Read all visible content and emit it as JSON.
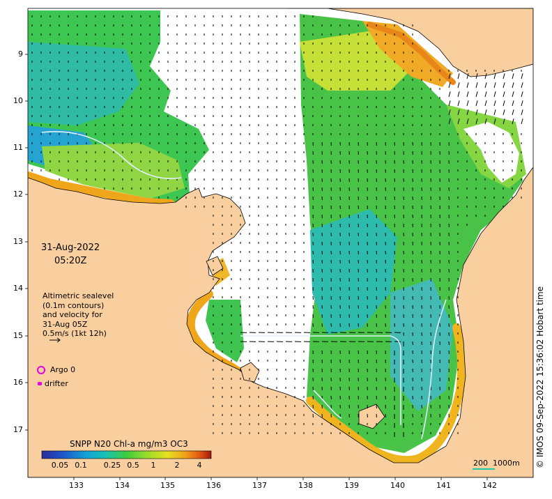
{
  "annotations": {
    "date": "31-Aug-2022",
    "time": "05:20Z",
    "sealevel_lines": [
      "Altimetric sealevel",
      "(0.1m contours)",
      "and velocity for",
      "31-Aug 05Z",
      "0.5m/s (1kt 12h)"
    ],
    "argo_label": "Argo 0",
    "drifter_label": "drifter",
    "copyright": "© IMOS 09-Sep-2022 15:36:02 Hobart time"
  },
  "colorbar": {
    "title": "SNPP N20 Chl-a mg/m3 OC3",
    "ticks": [
      "0.05",
      "0.1",
      "0.25",
      "0.5",
      "1",
      "2",
      "4"
    ]
  },
  "scale_bar": {
    "label_km": "200",
    "label_depth": "1000m"
  },
  "axes": {
    "x_ticks": [
      "133",
      "134",
      "135",
      "136",
      "137",
      "138",
      "139",
      "140",
      "141",
      "142"
    ],
    "y_ticks": [
      "9",
      "10",
      "11",
      "12",
      "13",
      "14",
      "15",
      "16",
      "17"
    ]
  },
  "colors": {
    "land": "#f9cfa0",
    "ocean_nodata": "#ffffff",
    "accent_magenta": "#e600e6",
    "chl_scale": [
      "#2b2c9a",
      "#1d55c8",
      "#12a0d6",
      "#18c3b0",
      "#3ccd3c",
      "#9bdc2c",
      "#e6e01e",
      "#f0a61a",
      "#e25a12",
      "#a1190b"
    ]
  }
}
